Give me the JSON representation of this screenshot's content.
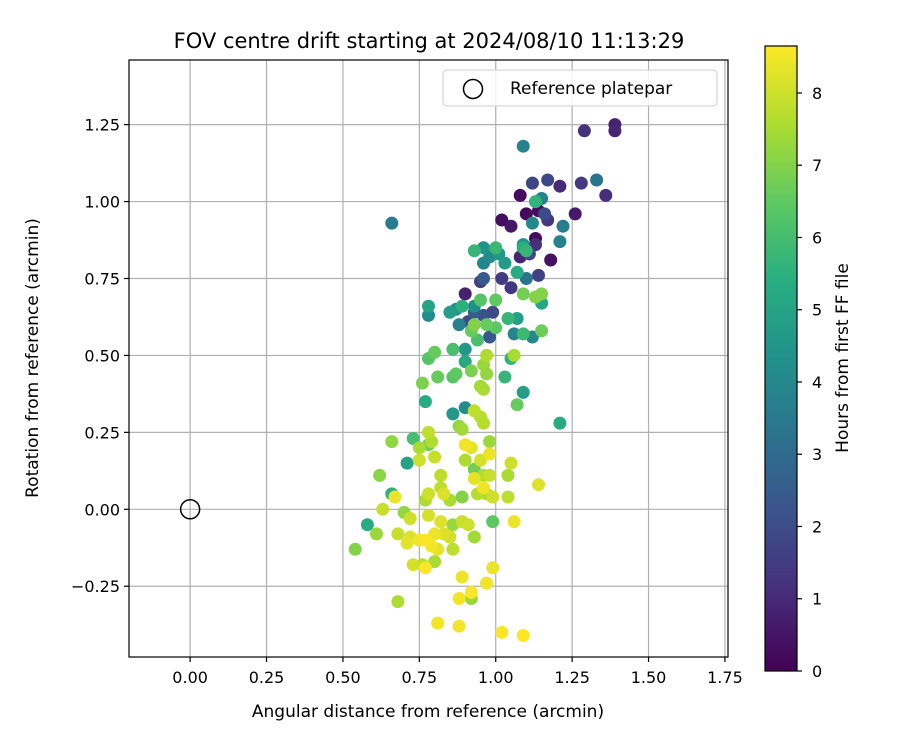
{
  "chart_data": {
    "type": "scatter",
    "title": "FOV centre drift starting at 2024/08/10 11:13:29",
    "xlabel": "Angular distance from reference (arcmin)",
    "ylabel": "Rotation from reference (arcmin)",
    "colorbar_label": "Hours from first FF file",
    "colormap": "viridis",
    "xlim": [
      -0.2,
      1.76
    ],
    "ylim": [
      -0.48,
      1.46
    ],
    "clim": [
      0,
      8.65
    ],
    "xticks": [
      "0.00",
      "0.25",
      "0.50",
      "0.75",
      "1.00",
      "1.25",
      "1.50",
      "1.75"
    ],
    "yticks": [
      "−0.25",
      "0.00",
      "0.25",
      "0.50",
      "0.75",
      "1.00",
      "1.25"
    ],
    "colorbar_ticks": [
      "0",
      "1",
      "2",
      "3",
      "4",
      "5",
      "6",
      "7",
      "8"
    ],
    "grid": true,
    "legend": {
      "position": "top-right",
      "label": "Reference platepar"
    },
    "reference_point": {
      "x": 0.0,
      "y": 0.0
    },
    "points": [
      [
        1.39,
        1.25,
        0.8
      ],
      [
        1.39,
        1.23,
        0.9
      ],
      [
        1.29,
        1.23,
        1.2
      ],
      [
        1.09,
        1.18,
        3.8
      ],
      [
        1.36,
        1.02,
        1.1
      ],
      [
        1.33,
        1.07,
        3.3
      ],
      [
        1.21,
        1.05,
        1.0
      ],
      [
        1.28,
        1.06,
        1.5
      ],
      [
        1.12,
        1.06,
        1.8
      ],
      [
        1.08,
        1.02,
        0.3
      ],
      [
        1.17,
        1.07,
        1.8
      ],
      [
        1.26,
        0.96,
        0.6
      ],
      [
        1.1,
        0.96,
        0.2
      ],
      [
        1.14,
        0.97,
        0.3
      ],
      [
        1.16,
        0.96,
        2.0
      ],
      [
        1.13,
        1.0,
        5.6
      ],
      [
        1.15,
        1.01,
        3.8
      ],
      [
        1.17,
        0.94,
        1.4
      ],
      [
        1.12,
        0.93,
        4.0
      ],
      [
        1.22,
        0.92,
        3.6
      ],
      [
        1.02,
        0.94,
        0.3
      ],
      [
        1.05,
        0.92,
        0.5
      ],
      [
        1.09,
        0.86,
        4.4
      ],
      [
        1.21,
        0.87,
        3.8
      ],
      [
        1.13,
        0.88,
        0.2
      ],
      [
        1.13,
        0.86,
        1.2
      ],
      [
        1.11,
        0.83,
        1.8
      ],
      [
        1.08,
        0.82,
        0.9
      ],
      [
        1.18,
        0.81,
        0.4
      ],
      [
        1.09,
        0.85,
        5.4
      ],
      [
        1.1,
        0.84,
        5.7
      ],
      [
        1.14,
        0.76,
        1.7
      ],
      [
        1.1,
        0.75,
        3.3
      ],
      [
        1.0,
        0.85,
        5.8
      ],
      [
        0.96,
        0.85,
        4.4
      ],
      [
        0.93,
        0.84,
        5.7
      ],
      [
        1.01,
        0.83,
        4.6
      ],
      [
        0.98,
        0.82,
        4.1
      ],
      [
        1.03,
        0.8,
        4.7
      ],
      [
        0.96,
        0.8,
        3.9
      ],
      [
        1.07,
        0.77,
        5.3
      ],
      [
        1.02,
        0.75,
        1.5
      ],
      [
        0.66,
        0.93,
        3.6
      ],
      [
        0.96,
        0.75,
        2.4
      ],
      [
        0.95,
        0.74,
        1.7
      ],
      [
        1.09,
        0.7,
        6.8
      ],
      [
        1.15,
        0.7,
        7.0
      ],
      [
        1.13,
        0.69,
        7.0
      ],
      [
        1.05,
        0.72,
        1.4
      ],
      [
        1.0,
        0.68,
        6.5
      ],
      [
        0.95,
        0.68,
        6.3
      ],
      [
        0.93,
        0.66,
        4.3
      ],
      [
        0.9,
        0.7,
        0.8
      ],
      [
        0.89,
        0.66,
        5.5
      ],
      [
        0.87,
        0.65,
        4.4
      ],
      [
        1.15,
        0.67,
        5.1
      ],
      [
        0.78,
        0.66,
        5.0
      ],
      [
        0.78,
        0.63,
        4.2
      ],
      [
        0.85,
        0.64,
        4.8
      ],
      [
        0.88,
        0.6,
        3.8
      ],
      [
        0.91,
        0.61,
        2.0
      ],
      [
        0.93,
        0.64,
        2.5
      ],
      [
        0.96,
        0.63,
        2.1
      ],
      [
        0.99,
        0.64,
        1.9
      ],
      [
        0.97,
        0.6,
        6.6
      ],
      [
        1.0,
        0.59,
        6.4
      ],
      [
        1.04,
        0.62,
        5.7
      ],
      [
        1.07,
        0.62,
        4.8
      ],
      [
        1.09,
        0.57,
        5.8
      ],
      [
        1.06,
        0.57,
        3.9
      ],
      [
        1.12,
        0.56,
        4.0
      ],
      [
        1.15,
        0.58,
        6.7
      ],
      [
        0.93,
        0.6,
        7.0
      ],
      [
        0.92,
        0.58,
        6.6
      ],
      [
        0.94,
        0.55,
        6.1
      ],
      [
        0.98,
        0.56,
        2.4
      ],
      [
        0.9,
        0.52,
        4.6
      ],
      [
        0.86,
        0.52,
        6.1
      ],
      [
        0.8,
        0.51,
        6.6
      ],
      [
        0.78,
        0.49,
        6.3
      ],
      [
        0.9,
        0.48,
        5.2
      ],
      [
        0.97,
        0.5,
        7.6
      ],
      [
        0.96,
        0.47,
        7.3
      ],
      [
        1.05,
        0.49,
        5.6
      ],
      [
        1.06,
        0.5,
        7.5
      ],
      [
        0.97,
        0.44,
        7.2
      ],
      [
        0.92,
        0.45,
        6.9
      ],
      [
        0.87,
        0.44,
        6.5
      ],
      [
        0.86,
        0.43,
        6.3
      ],
      [
        0.81,
        0.43,
        6.6
      ],
      [
        0.76,
        0.41,
        6.9
      ],
      [
        0.95,
        0.4,
        7.4
      ],
      [
        0.96,
        0.39,
        7.5
      ],
      [
        1.03,
        0.43,
        5.7
      ],
      [
        1.09,
        0.38,
        4.8
      ],
      [
        0.9,
        0.33,
        4.2
      ],
      [
        0.86,
        0.31,
        4.6
      ],
      [
        0.77,
        0.35,
        5.3
      ],
      [
        0.93,
        0.32,
        7.8
      ],
      [
        0.95,
        0.3,
        7.7
      ],
      [
        0.96,
        0.28,
        7.7
      ],
      [
        1.07,
        0.34,
        6.6
      ],
      [
        0.88,
        0.27,
        7.2
      ],
      [
        0.89,
        0.26,
        7.4
      ],
      [
        0.78,
        0.25,
        7.8
      ],
      [
        0.73,
        0.23,
        6.0
      ],
      [
        0.78,
        0.21,
        6.8
      ],
      [
        0.66,
        0.22,
        7.2
      ],
      [
        0.75,
        0.2,
        7.5
      ],
      [
        0.79,
        0.22,
        7.6
      ],
      [
        0.8,
        0.17,
        7.9
      ],
      [
        0.9,
        0.21,
        8.5
      ],
      [
        0.92,
        0.2,
        8.3
      ],
      [
        0.98,
        0.22,
        7.3
      ],
      [
        0.98,
        0.18,
        8.4
      ],
      [
        1.21,
        0.28,
        5.3
      ],
      [
        0.75,
        0.16,
        8.0
      ],
      [
        0.71,
        0.15,
        5.0
      ],
      [
        0.62,
        0.11,
        7.1
      ],
      [
        0.9,
        0.16,
        7.6
      ],
      [
        0.95,
        0.16,
        8.1
      ],
      [
        1.05,
        0.15,
        8.0
      ],
      [
        0.93,
        0.13,
        6.8
      ],
      [
        0.82,
        0.11,
        7.8
      ],
      [
        0.93,
        0.1,
        8.3
      ],
      [
        0.96,
        0.11,
        7.6
      ],
      [
        0.98,
        0.11,
        7.9
      ],
      [
        1.04,
        0.11,
        7.5
      ],
      [
        0.82,
        0.07,
        7.8
      ],
      [
        0.96,
        0.07,
        8.5
      ],
      [
        1.14,
        0.08,
        8.2
      ],
      [
        0.94,
        0.05,
        7.7
      ],
      [
        0.97,
        0.05,
        7.6
      ],
      [
        0.78,
        0.05,
        8.0
      ],
      [
        0.83,
        0.05,
        8.2
      ],
      [
        0.85,
        0.03,
        7.5
      ],
      [
        0.89,
        0.04,
        7.0
      ],
      [
        0.99,
        0.04,
        8.0
      ],
      [
        1.04,
        0.04,
        7.8
      ],
      [
        0.66,
        0.05,
        5.5
      ],
      [
        0.67,
        0.04,
        8.4
      ],
      [
        0.77,
        0.03,
        7.6
      ],
      [
        0.63,
        -0.0,
        7.9
      ],
      [
        0.7,
        -0.01,
        7.2
      ],
      [
        0.72,
        -0.03,
        8.0
      ],
      [
        0.78,
        -0.02,
        8.1
      ],
      [
        0.82,
        -0.04,
        8.2
      ],
      [
        0.86,
        -0.05,
        7.3
      ],
      [
        0.89,
        -0.04,
        7.9
      ],
      [
        0.91,
        -0.05,
        8.0
      ],
      [
        0.99,
        -0.04,
        6.4
      ],
      [
        1.06,
        -0.04,
        8.4
      ],
      [
        0.58,
        -0.05,
        5.3
      ],
      [
        0.61,
        -0.08,
        7.3
      ],
      [
        0.68,
        -0.08,
        7.9
      ],
      [
        0.72,
        -0.09,
        8.2
      ],
      [
        0.77,
        -0.1,
        8.6
      ],
      [
        0.8,
        -0.08,
        8.4
      ],
      [
        0.83,
        -0.08,
        8.2
      ],
      [
        0.85,
        -0.09,
        8.0
      ],
      [
        0.93,
        -0.09,
        7.4
      ],
      [
        0.71,
        -0.11,
        8.3
      ],
      [
        0.75,
        -0.1,
        8.5
      ],
      [
        0.79,
        -0.12,
        8.5
      ],
      [
        0.81,
        -0.13,
        8.3
      ],
      [
        0.86,
        -0.13,
        7.8
      ],
      [
        0.54,
        -0.13,
        7.0
      ],
      [
        0.73,
        -0.18,
        8.1
      ],
      [
        0.76,
        -0.18,
        7.7
      ],
      [
        0.77,
        -0.19,
        8.6
      ],
      [
        0.8,
        -0.17,
        7.5
      ],
      [
        0.89,
        -0.22,
        8.4
      ],
      [
        0.99,
        -0.19,
        8.4
      ],
      [
        0.97,
        -0.24,
        8.5
      ],
      [
        0.92,
        -0.27,
        8.6
      ],
      [
        0.88,
        -0.29,
        8.5
      ],
      [
        0.92,
        -0.29,
        7.3
      ],
      [
        0.68,
        -0.3,
        7.6
      ],
      [
        0.81,
        -0.37,
        8.5
      ],
      [
        0.88,
        -0.38,
        8.5
      ],
      [
        1.02,
        -0.4,
        8.6
      ],
      [
        1.09,
        -0.41,
        8.7
      ]
    ]
  }
}
